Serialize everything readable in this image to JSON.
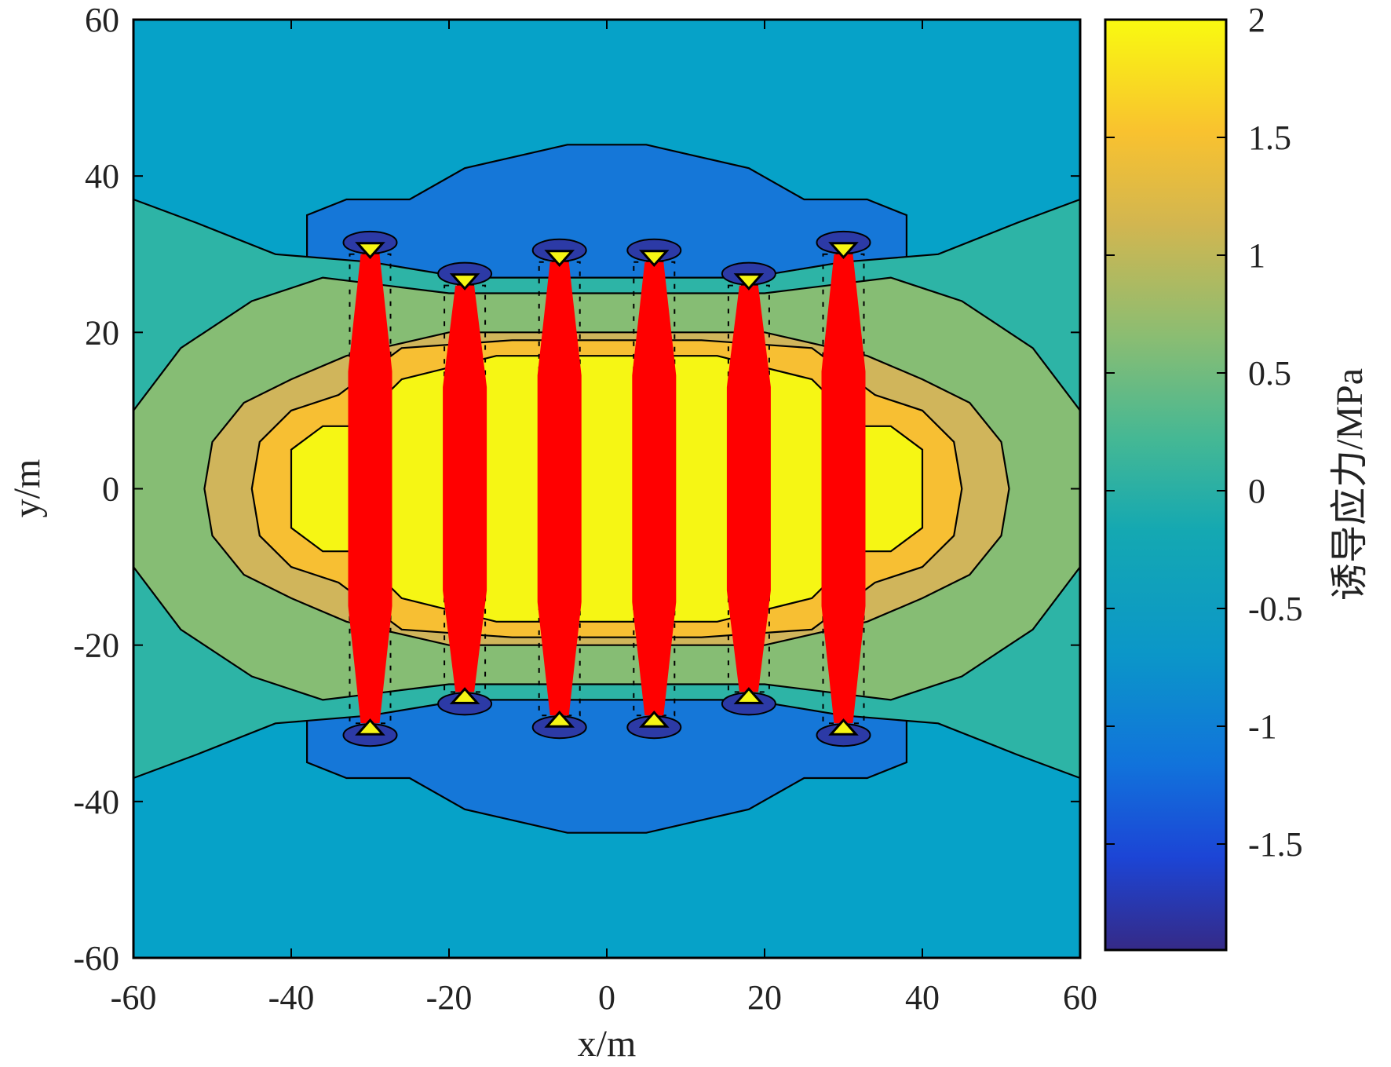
{
  "chart_data": {
    "type": "heatmap",
    "subtype": "filled-contour",
    "title": "",
    "xlabel": "x/m",
    "ylabel": "y/m",
    "xlim": [
      -60,
      60
    ],
    "ylim": [
      -60,
      60
    ],
    "xticks": [
      -60,
      -40,
      -20,
      0,
      20,
      40,
      60
    ],
    "yticks": [
      -60,
      -40,
      -20,
      0,
      20,
      40,
      60
    ],
    "colorbar": {
      "label": "诱导应力/MPa",
      "range": [
        -1.95,
        2.0
      ],
      "ticks": [
        2,
        1.5,
        1,
        0.5,
        0,
        -0.5,
        -1,
        -1.5
      ]
    },
    "contour_levels": [
      -1.5,
      -1.0,
      -0.5,
      0.0,
      0.5,
      1.0,
      1.5,
      2.0
    ],
    "fractures": {
      "x": [
        -30,
        -18,
        -6,
        6,
        18,
        30
      ],
      "half_length": [
        30,
        26,
        29,
        29,
        26,
        30
      ],
      "color": "#ff0000"
    }
  },
  "colors": {
    "background": "#06a2c8",
    "frame": "#000000",
    "fracture": "#ff0000"
  }
}
